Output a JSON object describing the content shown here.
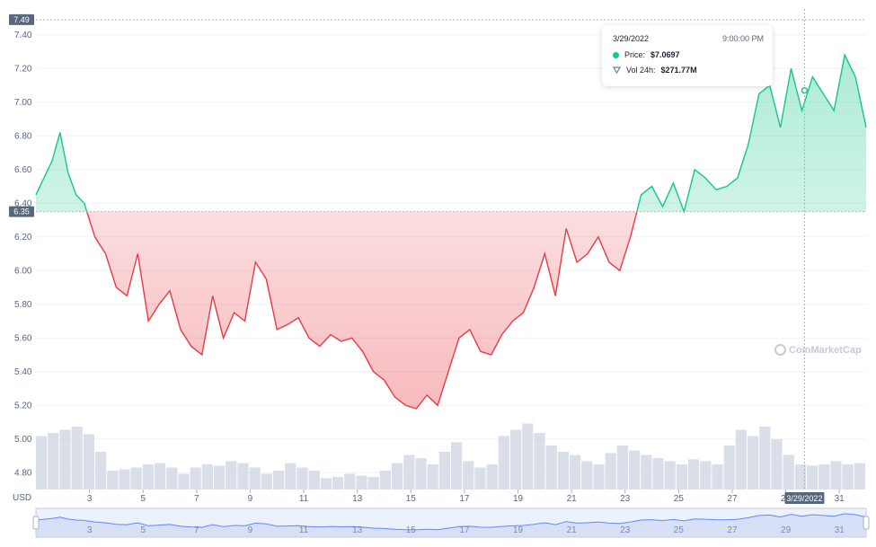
{
  "currency_label": "USD",
  "watermark": "CoinMarketCap",
  "tooltip": {
    "date": "3/29/2022",
    "time": "9:00:00 PM",
    "price_label": "Price:",
    "price_value": "$7.0697",
    "vol_label": "Vol 24h:",
    "vol_value": "$271.77M"
  },
  "crosshair_date_label": "3/29/2022",
  "colors": {
    "up": "#16c784",
    "down": "#ea3943",
    "grid": "#eff2f5",
    "text": "#58667e",
    "volume": "#cfd6e4",
    "navigator": "#6188ff"
  },
  "chart_data": {
    "type": "area",
    "y_axis": {
      "range": [
        4.7,
        7.5
      ],
      "ticks": [
        "4.80",
        "5.00",
        "5.20",
        "5.40",
        "5.60",
        "5.80",
        "6.00",
        "6.20",
        "6.40",
        "6.60",
        "6.80",
        "7.00",
        "7.20",
        "7.40"
      ]
    },
    "x_axis": {
      "range": [
        1,
        32
      ],
      "ticks": [
        "3",
        "5",
        "7",
        "9",
        "11",
        "13",
        "15",
        "17",
        "19",
        "21",
        "23",
        "25",
        "27",
        "29",
        "31"
      ]
    },
    "baseline": {
      "value": 6.35,
      "label": "6.35"
    },
    "max_marker": {
      "value": 7.49,
      "label": "7.49"
    },
    "price_series": {
      "name": "Price",
      "x": [
        1.0,
        1.3,
        1.6,
        1.9,
        2.2,
        2.5,
        2.8,
        3.2,
        3.6,
        4.0,
        4.4,
        4.8,
        5.2,
        5.6,
        6.0,
        6.4,
        6.8,
        7.2,
        7.6,
        8.0,
        8.4,
        8.8,
        9.2,
        9.6,
        10.0,
        10.4,
        10.8,
        11.2,
        11.6,
        12.0,
        12.4,
        12.8,
        13.2,
        13.6,
        14.0,
        14.4,
        14.8,
        15.2,
        15.6,
        16.0,
        16.4,
        16.8,
        17.2,
        17.6,
        18.0,
        18.4,
        18.8,
        19.2,
        19.6,
        20.0,
        20.4,
        20.8,
        21.2,
        21.6,
        22.0,
        22.4,
        22.8,
        23.2,
        23.6,
        24.0,
        24.4,
        24.8,
        25.2,
        25.6,
        26.0,
        26.4,
        26.8,
        27.2,
        27.6,
        28.0,
        28.4,
        28.8,
        29.2,
        29.6,
        30.0,
        30.4,
        30.8,
        31.2,
        31.6,
        32.0
      ],
      "y": [
        6.45,
        6.55,
        6.65,
        6.82,
        6.58,
        6.45,
        6.4,
        6.2,
        6.1,
        5.9,
        5.85,
        6.1,
        5.7,
        5.8,
        5.88,
        5.65,
        5.55,
        5.5,
        5.85,
        5.6,
        5.75,
        5.7,
        6.05,
        5.95,
        5.65,
        5.68,
        5.72,
        5.6,
        5.55,
        5.62,
        5.58,
        5.6,
        5.52,
        5.4,
        5.35,
        5.25,
        5.2,
        5.18,
        5.26,
        5.2,
        5.4,
        5.6,
        5.65,
        5.52,
        5.5,
        5.62,
        5.7,
        5.75,
        5.9,
        6.1,
        5.85,
        6.25,
        6.05,
        6.1,
        6.2,
        6.05,
        6.0,
        6.2,
        6.45,
        6.5,
        6.38,
        6.52,
        6.35,
        6.6,
        6.55,
        6.48,
        6.5,
        6.55,
        6.75,
        7.05,
        7.1,
        6.85,
        7.2,
        6.95,
        7.15,
        7.05,
        6.95,
        7.28,
        7.15,
        6.85
      ]
    },
    "volume_series": {
      "name": "Vol 24h",
      "values": [
        0.85,
        0.9,
        0.95,
        1.0,
        0.88,
        0.6,
        0.3,
        0.32,
        0.35,
        0.4,
        0.42,
        0.35,
        0.25,
        0.35,
        0.4,
        0.38,
        0.45,
        0.42,
        0.35,
        0.25,
        0.3,
        0.42,
        0.35,
        0.3,
        0.18,
        0.2,
        0.25,
        0.22,
        0.2,
        0.3,
        0.42,
        0.55,
        0.5,
        0.4,
        0.6,
        0.75,
        0.45,
        0.35,
        0.4,
        0.85,
        0.95,
        1.05,
        0.9,
        0.7,
        0.6,
        0.55,
        0.45,
        0.4,
        0.58,
        0.7,
        0.62,
        0.55,
        0.5,
        0.45,
        0.4,
        0.48,
        0.45,
        0.4,
        0.7,
        0.95,
        0.85,
        1.0,
        0.8,
        0.55,
        0.4,
        0.38,
        0.4,
        0.45,
        0.4,
        0.42
      ]
    }
  }
}
